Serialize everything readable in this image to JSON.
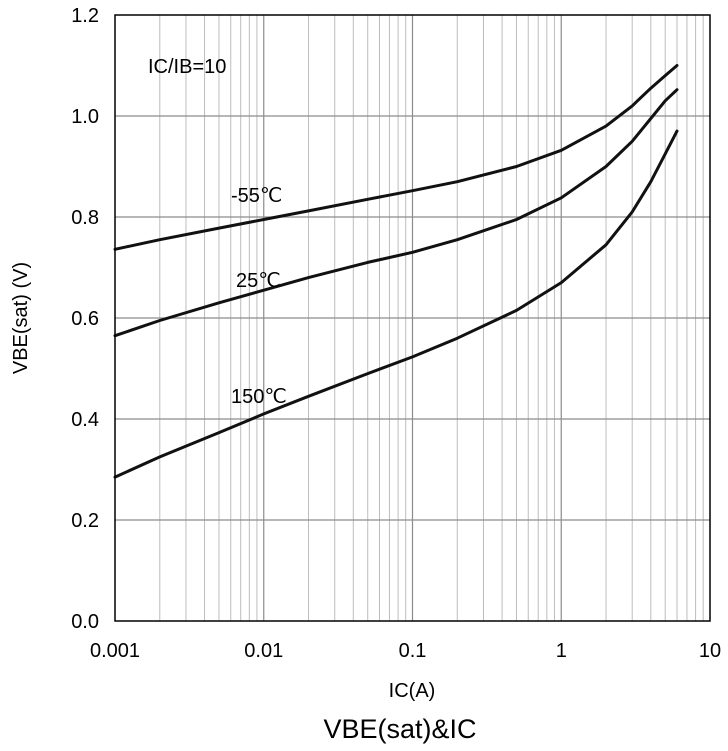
{
  "chart_data": {
    "type": "line",
    "title": "VBE(sat)&IC",
    "xlabel": "IC(A)",
    "ylabel": "VBE(sat) (V)",
    "xscale": "log",
    "xlim": [
      0.001,
      10
    ],
    "ylim": [
      0.0,
      1.2
    ],
    "x_ticks": [
      "0.001",
      "0.01",
      "0.1",
      "1",
      "10"
    ],
    "y_ticks": [
      "0.0",
      "0.2",
      "0.4",
      "0.6",
      "0.8",
      "1.0",
      "1.2"
    ],
    "grid": true,
    "annotation": "IC/IB=10",
    "series": [
      {
        "name": "-55℃",
        "x": [
          0.001,
          0.002,
          0.005,
          0.01,
          0.02,
          0.05,
          0.1,
          0.2,
          0.5,
          1,
          2,
          3,
          4,
          5,
          6
        ],
        "y": [
          0.736,
          0.755,
          0.778,
          0.795,
          0.812,
          0.835,
          0.852,
          0.87,
          0.9,
          0.932,
          0.98,
          1.02,
          1.055,
          1.08,
          1.1
        ]
      },
      {
        "name": "25℃",
        "x": [
          0.001,
          0.002,
          0.005,
          0.01,
          0.02,
          0.05,
          0.1,
          0.2,
          0.5,
          1,
          2,
          3,
          4,
          5,
          6
        ],
        "y": [
          0.565,
          0.595,
          0.63,
          0.655,
          0.68,
          0.71,
          0.73,
          0.755,
          0.795,
          0.838,
          0.9,
          0.95,
          0.995,
          1.03,
          1.052
        ]
      },
      {
        "name": "150℃",
        "x": [
          0.001,
          0.002,
          0.005,
          0.01,
          0.02,
          0.05,
          0.1,
          0.2,
          0.5,
          1,
          2,
          3,
          4,
          5,
          6
        ],
        "y": [
          0.285,
          0.325,
          0.373,
          0.41,
          0.445,
          0.49,
          0.523,
          0.56,
          0.615,
          0.67,
          0.745,
          0.81,
          0.87,
          0.925,
          0.97
        ]
      }
    ]
  }
}
